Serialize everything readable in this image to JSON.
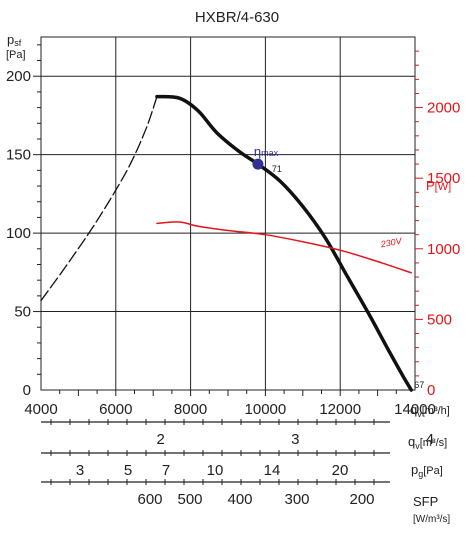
{
  "chart_data": {
    "type": "line",
    "title": "HXBR/4-630",
    "x_axis": {
      "label_main": "q",
      "label_sub": "v",
      "label_unit": "[m³/h]",
      "range": [
        4000,
        14000
      ],
      "ticks": [
        "4000",
        "6000",
        "8000",
        "10000",
        "12000",
        "14000"
      ]
    },
    "y_axis_left": {
      "label_main": "p",
      "label_sub": "sf",
      "label_unit": "[Pa]",
      "range": [
        0,
        225
      ],
      "ticks": [
        "0",
        "50",
        "100",
        "150",
        "200"
      ]
    },
    "y_axis_right": {
      "label_main": "P",
      "label_unit": "[W]",
      "range": [
        0,
        2500
      ],
      "ticks": [
        "0",
        "500",
        "1000",
        "1500",
        "2000"
      ],
      "color": "#e3151a"
    },
    "grid": true,
    "series": [
      {
        "role": "pressure-dashed",
        "color": "#111111",
        "x": [
          4000,
          4700,
          5500,
          6300,
          6800,
          7100
        ],
        "y": [
          57,
          80,
          108,
          140,
          166,
          187
        ]
      },
      {
        "role": "pressure",
        "color": "#111111",
        "x": [
          7100,
          7700,
          8200,
          8700,
          9300,
          9800,
          10400,
          11000,
          11600,
          12200,
          12800,
          13300,
          13700,
          13900
        ],
        "y": [
          187,
          186,
          178,
          164,
          152,
          144,
          133,
          117,
          97,
          72,
          47,
          25,
          8,
          0
        ]
      },
      {
        "name": "230V",
        "role": "power",
        "color": "#e3151a",
        "x": [
          7100,
          7700,
          8200,
          9000,
          10000,
          11000,
          12000,
          13000,
          13900
        ],
        "y": [
          1180,
          1190,
          1160,
          1130,
          1100,
          1050,
          990,
          910,
          830
        ]
      }
    ],
    "annotations": {
      "eta_label": "η",
      "eta_sub": "max",
      "eta_point": {
        "x": 9800,
        "y": 144
      },
      "eta_value": "71",
      "end_value": "67",
      "power_label": "230V"
    },
    "scales": [
      {
        "label_main": "q",
        "label_sub": "v",
        "label_unit": "[m³/s]",
        "labels": [
          {
            "text": "2",
            "value": 2
          },
          {
            "text": "3",
            "value": 3
          },
          {
            "text": "4",
            "value": 4
          }
        ]
      },
      {
        "label_main": "p",
        "label_sub": "g",
        "label_unit": "[Pa]",
        "labels": [
          {
            "text": "3",
            "value": 3
          },
          {
            "text": "5",
            "value": 5
          },
          {
            "text": "7",
            "value": 7
          },
          {
            "text": "10",
            "value": 10
          },
          {
            "text": "14",
            "value": 14
          },
          {
            "text": "20",
            "value": 20
          }
        ]
      },
      {
        "label_main": "SFP",
        "label_unit": "[W/m³/s]",
        "labels": [
          {
            "text": "600",
            "value": 600
          },
          {
            "text": "500",
            "value": 500
          },
          {
            "text": "400",
            "value": 400
          },
          {
            "text": "300",
            "value": 300
          },
          {
            "text": "200",
            "value": 200
          }
        ]
      }
    ]
  }
}
